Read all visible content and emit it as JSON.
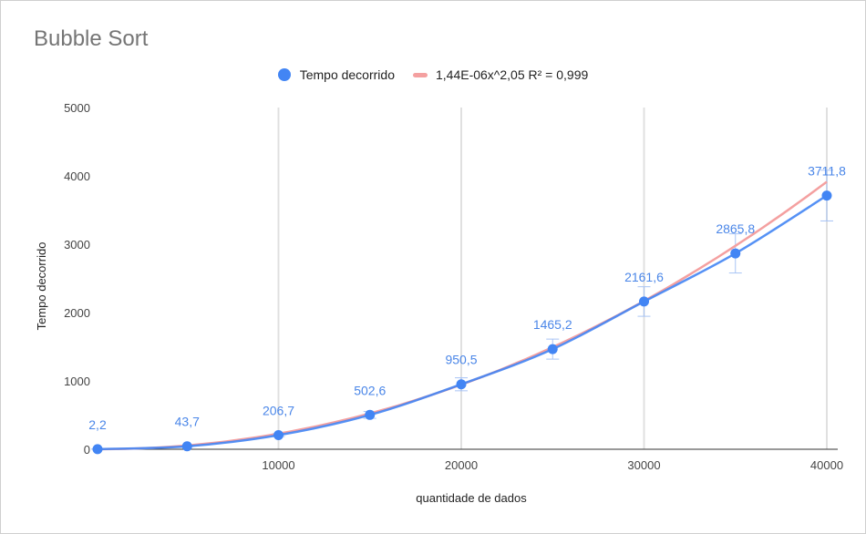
{
  "chart_data": {
    "type": "scatter",
    "title": "Bubble Sort",
    "xlabel": "quantidade de dados",
    "ylabel": "Tempo decorrido",
    "xlim": [
      0,
      40000
    ],
    "ylim": [
      0,
      5000
    ],
    "x_ticks": [
      10000,
      20000,
      30000,
      40000
    ],
    "y_ticks": [
      0,
      1000,
      2000,
      3000,
      4000,
      5000
    ],
    "grid": "vertical",
    "legend_position": "top",
    "series": [
      {
        "name": "Tempo decorrido",
        "color": "#4285f4",
        "x": [
          100,
          5000,
          10000,
          15000,
          20000,
          25000,
          30000,
          35000,
          40000
        ],
        "y": [
          2.2,
          43.7,
          206.7,
          502.6,
          950.5,
          1465.2,
          2161.6,
          2865.8,
          3711.8
        ],
        "labels": [
          "2,2",
          "43,7",
          "206,7",
          "502,6",
          "950,5",
          "1465,2",
          "2161,6",
          "2865,8",
          "3711,8"
        ],
        "error_bar_percent": 10
      }
    ],
    "trendline": {
      "label": "1,44E-06x^2,05 R² = 0,999",
      "color": "#f4a0a0",
      "coefficient": 1.44e-06,
      "exponent": 2.05
    }
  }
}
